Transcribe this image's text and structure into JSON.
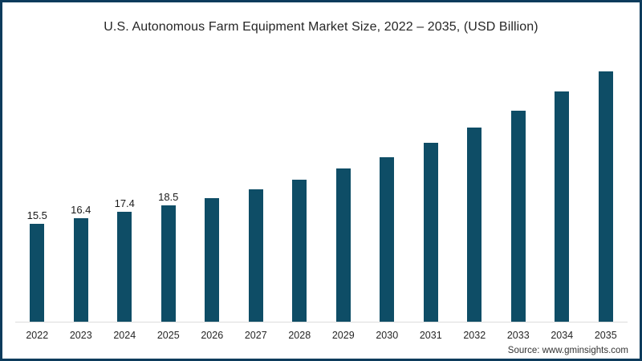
{
  "chart_data": {
    "type": "bar",
    "title": "U.S. Autonomous Farm Equipment Market Size, 2022 – 2035, (USD Billion)",
    "xlabel": "",
    "ylabel": "",
    "unit": "USD Billion",
    "categories": [
      "2022",
      "2023",
      "2024",
      "2025",
      "2026",
      "2027",
      "2028",
      "2029",
      "2030",
      "2031",
      "2032",
      "2033",
      "2034",
      "2035"
    ],
    "values": [
      15.5,
      16.4,
      17.4,
      18.5,
      19.6,
      21.0,
      22.5,
      24.3,
      26.1,
      28.3,
      30.7,
      33.4,
      36.4,
      39.6
    ],
    "data_labels": [
      "15.5",
      "16.4",
      "17.4",
      "18.5",
      "",
      "",
      "",
      "",
      "",
      "",
      "",
      "",
      "",
      ""
    ],
    "ylim": [
      0,
      43.5
    ],
    "grid": false,
    "legend": false,
    "bar_color": "#0e4d66"
  },
  "colors": {
    "bar": "#0e4d66",
    "frame_border": "#0d3b5c",
    "axis_line": "#dcdcdc"
  },
  "source": "Source: www.gminsights.com"
}
